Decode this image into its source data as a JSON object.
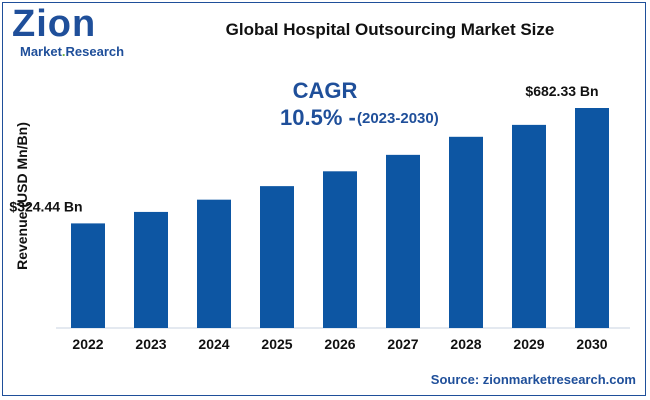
{
  "logo": {
    "word": "Zion",
    "sub_main": "Market",
    "sub_dot": ".",
    "sub_tail": "Research"
  },
  "title": "Global Hospital Outsourcing Market Size",
  "cagr": {
    "label": "CAGR",
    "value": "10.5% -",
    "period": "(2023-2030)"
  },
  "source": "Source: zionmarketresearch.com",
  "colors": {
    "bar": "#0d56a3",
    "text": "#1f4f9a"
  },
  "chart_data": {
    "type": "bar",
    "categories": [
      "2022",
      "2023",
      "2024",
      "2025",
      "2026",
      "2027",
      "2028",
      "2029",
      "2030"
    ],
    "values": [
      324.44,
      360,
      398,
      440,
      486,
      537,
      593,
      630,
      682.33
    ],
    "data_labels": {
      "2022": "$324.44 Bn",
      "2030": "$682.33 Bn"
    },
    "ylabel": "Revenue (USD Mn/Bn)",
    "xlabel": "",
    "grid": false
  }
}
